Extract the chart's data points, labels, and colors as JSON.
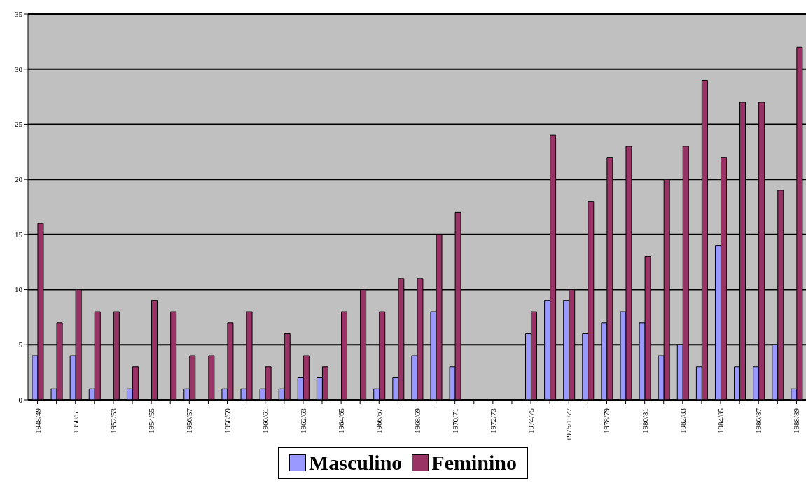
{
  "chart_data": {
    "type": "bar",
    "categories": [
      "1948/49",
      null,
      "1950/51",
      null,
      "1952/53",
      null,
      "1954/55",
      null,
      "1956/57",
      null,
      "1958/59",
      null,
      "1960/61",
      null,
      "1962/63",
      null,
      "1964/65",
      null,
      "1966/67",
      null,
      "1968/69",
      null,
      "1970/71",
      null,
      "1972/73",
      null,
      "1974/75",
      null,
      "1976/1977",
      null,
      "1978/79",
      null,
      "1980/81",
      null,
      "1982/83",
      null,
      "1984/85",
      null,
      "1986/87",
      null,
      "1988/89"
    ],
    "series": [
      {
        "name": "Masculino",
        "color": "#9999ff",
        "values": [
          4,
          1,
          4,
          1,
          0,
          1,
          0,
          0,
          1,
          0,
          1,
          1,
          1,
          1,
          2,
          2,
          0,
          0,
          1,
          2,
          4,
          8,
          3,
          null,
          null,
          null,
          6,
          9,
          9,
          6,
          7,
          8,
          7,
          4,
          5,
          3,
          14,
          3,
          3,
          5,
          1
        ]
      },
      {
        "name": "Feminino",
        "color": "#993366",
        "values": [
          16,
          7,
          10,
          8,
          8,
          3,
          9,
          8,
          4,
          4,
          7,
          8,
          3,
          6,
          4,
          3,
          8,
          10,
          8,
          11,
          11,
          15,
          17,
          null,
          null,
          null,
          8,
          24,
          10,
          18,
          22,
          23,
          13,
          20,
          23,
          29,
          22,
          27,
          27,
          19,
          32
        ]
      }
    ],
    "ylim": [
      0,
      35
    ],
    "yticks": [
      0,
      5,
      10,
      15,
      20,
      25,
      30,
      35
    ],
    "grid": "y",
    "legend": "bottom"
  }
}
